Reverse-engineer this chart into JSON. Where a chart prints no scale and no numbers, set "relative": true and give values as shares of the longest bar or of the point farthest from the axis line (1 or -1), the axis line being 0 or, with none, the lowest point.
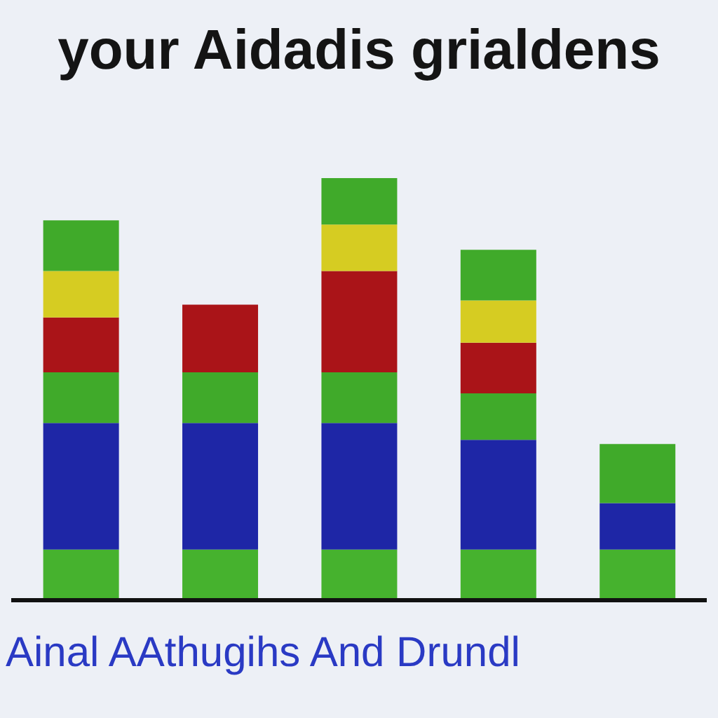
{
  "chart_data": {
    "type": "bar",
    "title": "your Aidadis grialdens",
    "xlabel": "Ainal AAthugihs And Drundl",
    "categories": [
      null,
      null,
      null,
      null,
      null
    ],
    "stacked": true,
    "relative": true,
    "series": [
      {
        "color": "#46b22e",
        "values": [
          0.12,
          0.12,
          0.12,
          0.12,
          0.12
        ]
      },
      {
        "color": "#1e26a6",
        "values": [
          0.3,
          0.3,
          0.3,
          0.26,
          0.11
        ]
      },
      {
        "color": "#40aa2a",
        "values": [
          0.12,
          0.12,
          0.12,
          0.11,
          0.14
        ]
      },
      {
        "color": "#aa1418",
        "values": [
          0.13,
          0.16,
          0.24,
          0.12,
          null
        ]
      },
      {
        "color": "#d6cc22",
        "values": [
          0.11,
          null,
          0.11,
          0.1,
          null
        ]
      },
      {
        "color": "#40aa2a",
        "values": [
          0.12,
          null,
          0.11,
          0.12,
          null
        ]
      }
    ]
  }
}
